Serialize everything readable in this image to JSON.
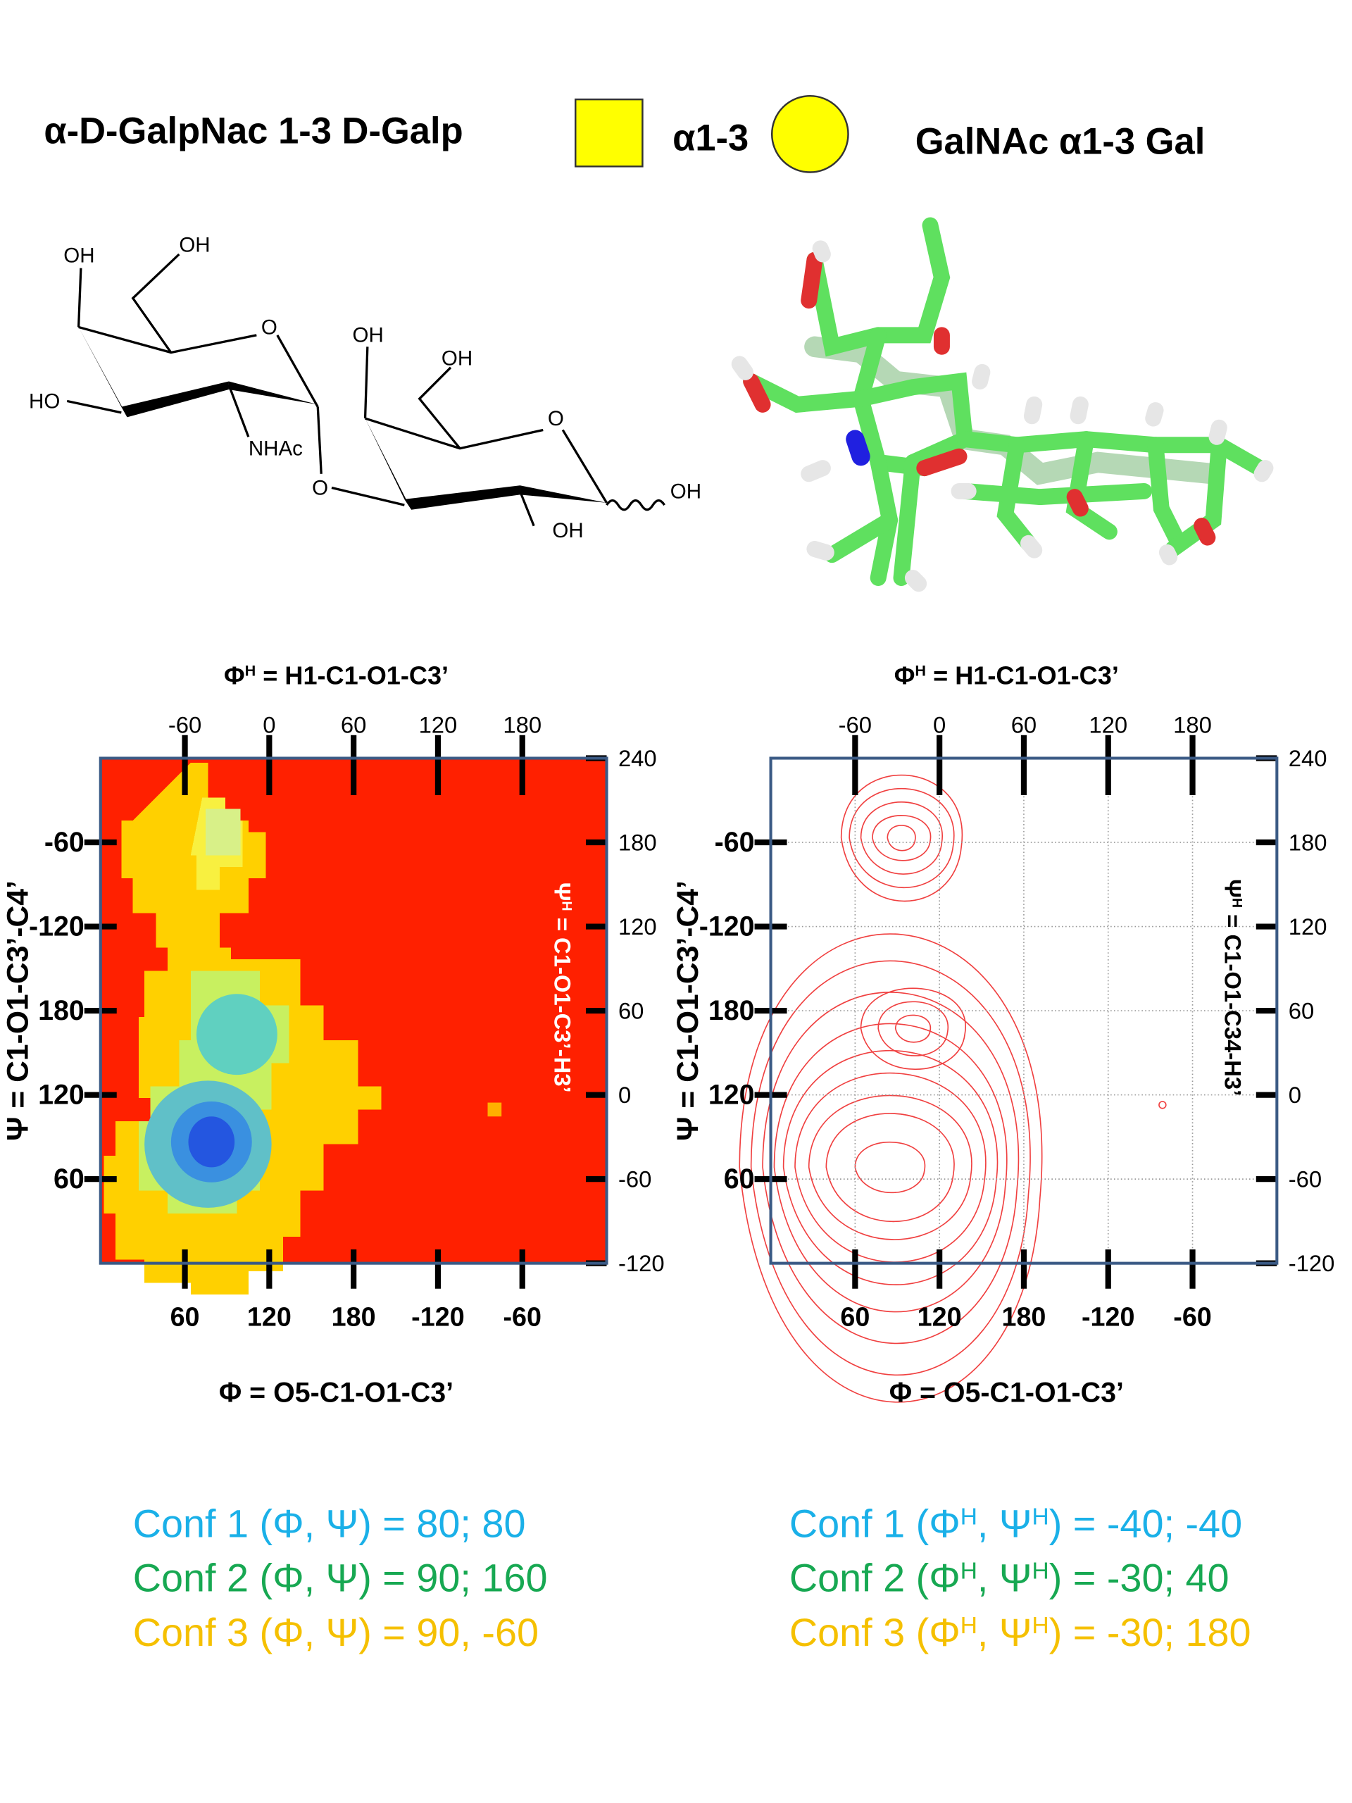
{
  "header": {
    "left_title": "α-D-GalpNac 1-3 D-Galp",
    "linkage": "α1-3",
    "right_title": "GalNAc α1-3 Gal"
  },
  "structure": {
    "labels": [
      "OH",
      "OH",
      "O",
      "HO",
      "NHAc",
      "O",
      "OH",
      "OH",
      "O",
      "OH",
      "OH"
    ]
  },
  "chart_data": [
    {
      "type": "heatmap",
      "grid": false,
      "background": "#ff2000",
      "x2_label": [
        "Φ",
        "H",
        " = H1-C1-O1-C3’"
      ],
      "x_label": "Φ = O5-C1-O1-C3’",
      "y_label": "Ψ = C1-O1-C3’-C4’",
      "y2_label": [
        "Ψ",
        "H",
        " = C1-O1-C3’-H3’"
      ],
      "y2_label_color": "#ffffff",
      "xlim": [
        0,
        360
      ],
      "xticks": [
        60,
        120,
        180,
        {
          "value": 240,
          "label": "-120"
        },
        {
          "value": 300,
          "label": "-60"
        }
      ],
      "x2lim": [
        -120,
        240
      ],
      "x2ticks": [
        -60,
        0,
        60,
        120,
        180
      ],
      "ylim": [
        0,
        360
      ],
      "yticks": [
        {
          "value": 300,
          "label": "-60"
        },
        {
          "value": 240,
          "label": "-120"
        },
        180,
        120,
        60
      ],
      "y2lim": [
        -120,
        240
      ],
      "y2ticks": [
        240,
        180,
        120,
        60,
        0,
        -60,
        -120
      ]
    },
    {
      "type": "contour",
      "grid": true,
      "background": "#ffffff",
      "x2_label": [
        "Φ",
        "H",
        " = H1-C1-O1-C3’"
      ],
      "x_label": "Φ = O5-C1-O1-C3’",
      "y_label": "Ψ = C1-O1-C3’-C4’",
      "y2_label": [
        "Ψ",
        "H",
        " = C1-O1-C34-H3’"
      ],
      "y2_label_color": "#000000",
      "xlim": [
        0,
        360
      ],
      "xticks": [
        60,
        120,
        180,
        {
          "value": 240,
          "label": "-120"
        },
        {
          "value": 300,
          "label": "-60"
        }
      ],
      "x2lim": [
        -120,
        240
      ],
      "x2ticks": [
        -60,
        0,
        60,
        120,
        180
      ],
      "ylim": [
        0,
        360
      ],
      "yticks": [
        {
          "value": 300,
          "label": "-60"
        },
        {
          "value": 240,
          "label": "-120"
        },
        180,
        120,
        60
      ],
      "y2lim": [
        -120,
        240
      ],
      "y2ticks": [
        240,
        180,
        120,
        60,
        0,
        -60,
        -120
      ]
    }
  ],
  "conformations": {
    "left": [
      {
        "color": "#1ab0e8",
        "text": [
          "Conf 1 (Φ, Ψ) = 80; 80"
        ]
      },
      {
        "color": "#17a852",
        "text": [
          "Conf 2 (Φ, Ψ) =  90; 160"
        ]
      },
      {
        "color": "#f5c000",
        "text": [
          "Conf 3 (Φ, Ψ) = 90, -60"
        ]
      }
    ],
    "right": [
      {
        "color": "#1ab0e8",
        "text": [
          "Conf 1 (Φ",
          "H",
          ", Ψ",
          "H",
          ") = -40; -40"
        ]
      },
      {
        "color": "#17a852",
        "text": [
          "Conf 2 (Φ",
          "H",
          ", Ψ",
          "H",
          ") = -30; 40"
        ]
      },
      {
        "color": "#f5c000",
        "text": [
          "Conf 3 (Φ",
          "H",
          ", Ψ",
          "H",
          ") = -30; 180"
        ]
      }
    ]
  }
}
